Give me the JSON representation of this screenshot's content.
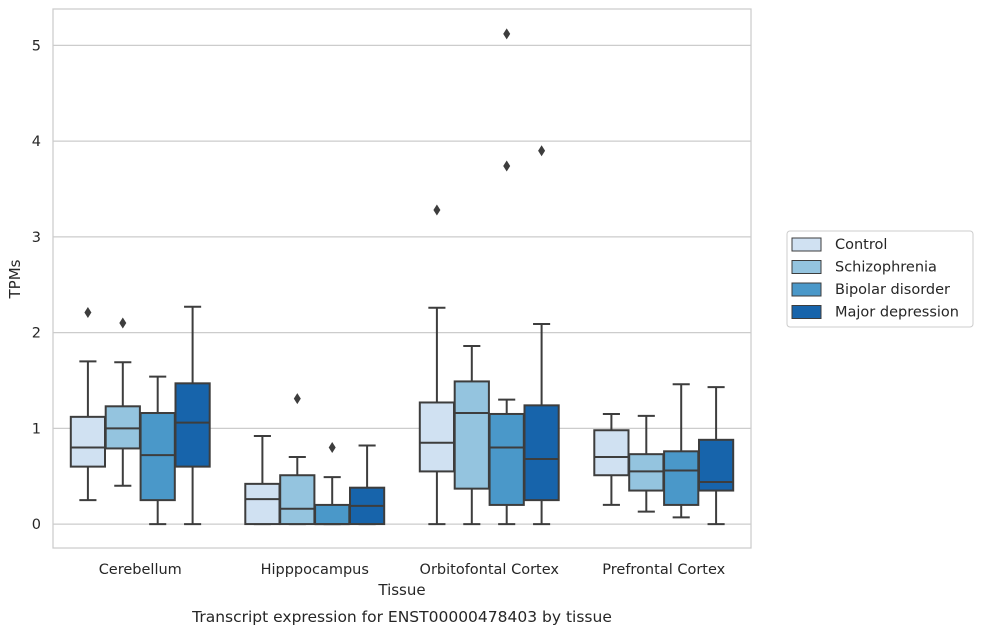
{
  "caption": "Transcript expression for ENST00000478403 by tissue",
  "chart_data": {
    "type": "box",
    "title": "",
    "xlabel": "Tissue",
    "ylabel": "TPMs",
    "ylim": [
      -0.25,
      5.38
    ],
    "yticks": [
      0,
      1,
      2,
      3,
      4,
      5
    ],
    "grid": "horizontal",
    "legend_position": "right",
    "categories": [
      "Cerebellum",
      "Hipppocampus",
      "Orbitofontal Cortex",
      "Prefrontal Cortex"
    ],
    "series": [
      {
        "name": "Control",
        "color": "#d0e1f2",
        "boxes": [
          {
            "whisker_low": 0.25,
            "q1": 0.6,
            "median": 0.8,
            "q3": 1.12,
            "whisker_high": 1.7,
            "outliers": [
              2.21
            ]
          },
          {
            "whisker_low": 0.0,
            "q1": 0.0,
            "median": 0.26,
            "q3": 0.42,
            "whisker_high": 0.92,
            "outliers": []
          },
          {
            "whisker_low": 0.0,
            "q1": 0.55,
            "median": 0.85,
            "q3": 1.27,
            "whisker_high": 2.26,
            "outliers": [
              3.28
            ]
          },
          {
            "whisker_low": 0.2,
            "q1": 0.51,
            "median": 0.7,
            "q3": 0.98,
            "whisker_high": 1.15,
            "outliers": []
          }
        ]
      },
      {
        "name": "Schizophrenia",
        "color": "#94c4df",
        "boxes": [
          {
            "whisker_low": 0.4,
            "q1": 0.79,
            "median": 1.0,
            "q3": 1.23,
            "whisker_high": 1.69,
            "outliers": [
              2.1
            ]
          },
          {
            "whisker_low": 0.0,
            "q1": 0.0,
            "median": 0.16,
            "q3": 0.51,
            "whisker_high": 0.7,
            "outliers": [
              1.31
            ]
          },
          {
            "whisker_low": 0.0,
            "q1": 0.37,
            "median": 1.16,
            "q3": 1.49,
            "whisker_high": 1.86,
            "outliers": []
          },
          {
            "whisker_low": 0.13,
            "q1": 0.35,
            "median": 0.55,
            "q3": 0.73,
            "whisker_high": 1.13,
            "outliers": []
          }
        ]
      },
      {
        "name": "Bipolar disorder",
        "color": "#4a98c9",
        "boxes": [
          {
            "whisker_low": 0.0,
            "q1": 0.25,
            "median": 0.72,
            "q3": 1.16,
            "whisker_high": 1.54,
            "outliers": []
          },
          {
            "whisker_low": 0.0,
            "q1": 0.0,
            "median": 0.0,
            "q3": 0.2,
            "whisker_high": 0.49,
            "outliers": [
              0.8
            ]
          },
          {
            "whisker_low": 0.0,
            "q1": 0.2,
            "median": 0.8,
            "q3": 1.15,
            "whisker_high": 1.3,
            "outliers": [
              3.74,
              5.12
            ]
          },
          {
            "whisker_low": 0.07,
            "q1": 0.2,
            "median": 0.56,
            "q3": 0.76,
            "whisker_high": 1.46,
            "outliers": []
          }
        ]
      },
      {
        "name": "Major depression",
        "color": "#1764ab",
        "boxes": [
          {
            "whisker_low": 0.0,
            "q1": 0.6,
            "median": 1.06,
            "q3": 1.47,
            "whisker_high": 2.27,
            "outliers": []
          },
          {
            "whisker_low": 0.0,
            "q1": 0.0,
            "median": 0.19,
            "q3": 0.38,
            "whisker_high": 0.82,
            "outliers": []
          },
          {
            "whisker_low": 0.0,
            "q1": 0.25,
            "median": 0.68,
            "q3": 1.24,
            "whisker_high": 2.09,
            "outliers": [
              3.9
            ]
          },
          {
            "whisker_low": 0.0,
            "q1": 0.35,
            "median": 0.44,
            "q3": 0.88,
            "whisker_high": 1.43,
            "outliers": []
          }
        ]
      }
    ]
  }
}
